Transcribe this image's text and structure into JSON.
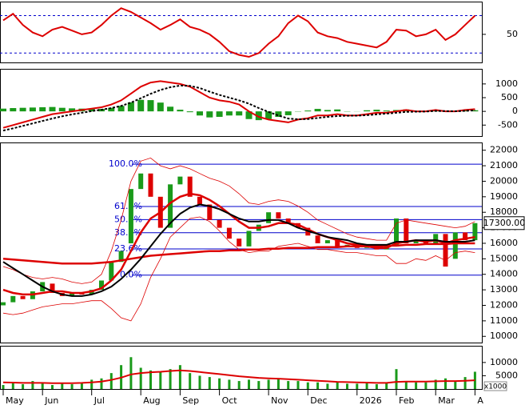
{
  "chart_data": [
    {
      "type": "line",
      "ylim": [
        20,
        85
      ],
      "yticks": [
        50
      ],
      "ref_lines": [
        30,
        70
      ],
      "series": [
        {
          "color": "#dd0000",
          "values": [
            65,
            72,
            60,
            52,
            48,
            55,
            58,
            54,
            50,
            52,
            60,
            70,
            78,
            74,
            68,
            62,
            55,
            60,
            66,
            58,
            55,
            50,
            42,
            32,
            28,
            26,
            30,
            40,
            48,
            62,
            70,
            64,
            52,
            48,
            46,
            42,
            40,
            38,
            36,
            42,
            55,
            54,
            48,
            50,
            55,
            44,
            50,
            60,
            70
          ]
        }
      ]
    },
    {
      "type": "macd",
      "ylim": [
        -900,
        1550
      ],
      "yticks": [
        -500,
        0,
        500,
        1000
      ],
      "series": [
        {
          "color": "#dd0000",
          "values": [
            -600,
            -500,
            -400,
            -300,
            -200,
            -100,
            -50,
            0,
            50,
            100,
            150,
            250,
            400,
            650,
            900,
            1050,
            1100,
            1050,
            1000,
            900,
            700,
            500,
            400,
            350,
            250,
            0,
            -200,
            -300,
            -350,
            -400,
            -300,
            -250,
            -150,
            -150,
            -100,
            -150,
            -150,
            -100,
            -50,
            -50,
            0,
            50,
            0,
            0,
            50,
            0,
            0,
            50,
            80
          ]
        },
        {
          "color": "#000000",
          "dash": true,
          "values": [
            -700,
            -620,
            -530,
            -440,
            -350,
            -260,
            -180,
            -110,
            -50,
            10,
            60,
            120,
            200,
            320,
            480,
            640,
            780,
            880,
            940,
            930,
            850,
            720,
            600,
            500,
            400,
            280,
            120,
            -20,
            -150,
            -260,
            -290,
            -280,
            -240,
            -200,
            -170,
            -160,
            -155,
            -140,
            -110,
            -80,
            -50,
            -20,
            -10,
            -5,
            15,
            10,
            5,
            20,
            40
          ]
        }
      ],
      "histogram": {
        "color": "#1a9a1a",
        "values": [
          100,
          120,
          130,
          140,
          150,
          160,
          130,
          110,
          100,
          90,
          90,
          130,
          200,
          330,
          420,
          410,
          320,
          170,
          60,
          -30,
          -150,
          -220,
          -200,
          -150,
          -150,
          -280,
          -320,
          -280,
          -200,
          -140,
          -10,
          30,
          90,
          50,
          70,
          -10,
          5,
          40,
          60,
          30,
          50,
          70,
          10,
          5,
          35,
          -10,
          -5,
          30,
          40
        ]
      }
    },
    {
      "type": "candlestick",
      "ylim": [
        9600,
        22500
      ],
      "yticks": [
        10000,
        11000,
        12000,
        13000,
        14000,
        15000,
        16000,
        17000,
        18000,
        19000,
        20000,
        21000,
        22000
      ],
      "up_color": "#1a9a1a",
      "down_color": "#dd0000",
      "open": [
        12000,
        12200,
        12600,
        12400,
        12900,
        13400,
        12800,
        12600,
        12800,
        12700,
        13000,
        13600,
        14800,
        16000,
        19500,
        20500,
        19000,
        17000,
        19800,
        20300,
        19000,
        18500,
        17500,
        17000,
        16300,
        15800,
        16800,
        17300,
        18000,
        17600,
        17300,
        17000,
        16500,
        16000,
        16200,
        15800,
        15900,
        15700,
        15800,
        15600,
        15800,
        17600,
        16000,
        16200,
        15900,
        16600,
        15000,
        16700,
        16200
      ],
      "close": [
        12200,
        12600,
        12400,
        12900,
        13500,
        12800,
        12600,
        12800,
        12700,
        13000,
        13600,
        14800,
        15500,
        19500,
        20500,
        19000,
        17000,
        19800,
        20300,
        19000,
        18500,
        17500,
        17000,
        16300,
        15800,
        16800,
        17200,
        18000,
        17600,
        17300,
        17000,
        16500,
        16000,
        16200,
        15800,
        15900,
        15700,
        15800,
        15600,
        15800,
        17600,
        16000,
        16200,
        15900,
        16600,
        14500,
        16700,
        16200,
        17300
      ],
      "series": [
        {
          "color": "#dd0000",
          "width": 0.8,
          "values": [
            14500,
            14300,
            14000,
            13800,
            13700,
            13800,
            13700,
            13500,
            13400,
            13500,
            14000,
            15500,
            17500,
            20000,
            21300,
            21500,
            21000,
            20800,
            21000,
            20800,
            20500,
            20200,
            20000,
            19700,
            19200,
            18600,
            18500,
            18700,
            18800,
            18700,
            18400,
            18000,
            17500,
            17200,
            16900,
            16600,
            16400,
            16300,
            16200,
            16200,
            17300,
            17500,
            17400,
            17300,
            17200,
            17100,
            17000,
            17100,
            17400
          ]
        },
        {
          "color": "#dd0000",
          "width": 0.8,
          "values": [
            11500,
            11400,
            11500,
            11700,
            11900,
            12000,
            12100,
            12100,
            12200,
            12300,
            12300,
            11800,
            11200,
            11000,
            12100,
            13800,
            15000,
            16400,
            17000,
            17600,
            17700,
            17400,
            16800,
            16100,
            15600,
            15400,
            15500,
            15500,
            15800,
            15900,
            16000,
            15800,
            15600,
            15600,
            15500,
            15400,
            15400,
            15300,
            15200,
            15200,
            14700,
            14700,
            15000,
            14900,
            15200,
            14900,
            15400,
            15500,
            15400
          ]
        },
        {
          "color": "#dd0000",
          "width": 2.5,
          "values": [
            15000,
            14950,
            14900,
            14850,
            14800,
            14750,
            14700,
            14700,
            14700,
            14700,
            14750,
            14800,
            14900,
            15000,
            15100,
            15200,
            15250,
            15300,
            15350,
            15400,
            15450,
            15500,
            15500,
            15550,
            15550,
            15600,
            15600,
            15650,
            15650,
            15700,
            15700,
            15700,
            15750,
            15750,
            15750,
            15800,
            15800,
            15800,
            15800,
            15850,
            15850,
            15900,
            15900,
            15950,
            15950,
            15950,
            16000,
            16000,
            16000
          ]
        },
        {
          "color": "#dd0000",
          "width": 2.5,
          "values": [
            13000,
            12800,
            12700,
            12700,
            12800,
            12900,
            12900,
            12800,
            12800,
            12900,
            13100,
            13600,
            14300,
            15500,
            16700,
            17600,
            18000,
            18600,
            19000,
            19200,
            19100,
            18800,
            18400,
            17900,
            17400,
            17000,
            17000,
            17100,
            17300,
            17300,
            17200,
            16900,
            16600,
            16400,
            16200,
            16000,
            15900,
            15800,
            15700,
            15700,
            16000,
            16100,
            16200,
            16100,
            16200,
            16000,
            16200,
            16300,
            16400
          ]
        },
        {
          "color": "#000000",
          "width": 2,
          "values": [
            14800,
            14400,
            14000,
            13600,
            13200,
            12900,
            12700,
            12600,
            12600,
            12700,
            12900,
            13200,
            13700,
            14300,
            15000,
            15800,
            16600,
            17300,
            17900,
            18300,
            18500,
            18400,
            18200,
            17900,
            17600,
            17400,
            17400,
            17500,
            17500,
            17300,
            17000,
            16800,
            16600,
            16400,
            16300,
            16200,
            16000,
            15900,
            15900,
            15900,
            16100,
            16100,
            16200,
            16200,
            16200,
            16100,
            16100,
            16100,
            16200
          ]
        }
      ],
      "fib_levels": [
        {
          "value": 21100,
          "label": "100.0%"
        },
        {
          "value": 18370,
          "label": "61.8%"
        },
        {
          "value": 17525,
          "label": "50.0%"
        },
        {
          "value": 16680,
          "label": "38.2%"
        },
        {
          "value": 15640,
          "label": "23.6%"
        },
        {
          "value": 13950,
          "label": "0.0%"
        }
      ],
      "fib_color": "#0000cc",
      "last_value": {
        "value": 17300,
        "label": "17300.00"
      }
    },
    {
      "type": "bar",
      "ylim": [
        0,
        16300
      ],
      "yticks": [
        5000,
        10000
      ],
      "unit_label": "x1000",
      "color": "#1a9a1a",
      "categories": [
        "May",
        null,
        null,
        null,
        "Jun",
        null,
        null,
        null,
        null,
        "Jul",
        null,
        null,
        null,
        null,
        "Aug",
        null,
        null,
        null,
        "Sep",
        null,
        null,
        null,
        "Oct",
        null,
        null,
        null,
        null,
        "Nov",
        null,
        null,
        null,
        "Dec",
        null,
        null,
        null,
        null,
        "2026",
        null,
        null,
        null,
        "Feb",
        null,
        null,
        null,
        "Mar",
        null,
        null,
        null,
        "A"
      ],
      "values": [
        1500,
        2500,
        1800,
        3000,
        2200,
        1500,
        2000,
        1800,
        2500,
        3500,
        4000,
        6000,
        9000,
        12000,
        8000,
        7000,
        6500,
        7500,
        9000,
        6000,
        5000,
        4500,
        4000,
        3500,
        3000,
        3500,
        3000,
        3500,
        4000,
        3000,
        3000,
        2500,
        2500,
        2000,
        2500,
        2000,
        2000,
        2200,
        1800,
        2500,
        7500,
        3000,
        2500,
        2500,
        3500,
        4000,
        3000,
        4500,
        6500
      ],
      "series": [
        {
          "color": "#dd0000",
          "width": 2,
          "values": [
            2500,
            2400,
            2300,
            2300,
            2300,
            2200,
            2200,
            2200,
            2300,
            2500,
            2800,
            3400,
            4300,
            5500,
            6000,
            6300,
            6500,
            6800,
            7000,
            6800,
            6400,
            6000,
            5600,
            5200,
            4800,
            4500,
            4200,
            4000,
            3900,
            3700,
            3500,
            3300,
            3100,
            2900,
            2700,
            2600,
            2500,
            2400,
            2300,
            2300,
            2700,
            2800,
            2800,
            2800,
            2900,
            3000,
            3000,
            3100,
            3300
          ]
        }
      ]
    }
  ]
}
